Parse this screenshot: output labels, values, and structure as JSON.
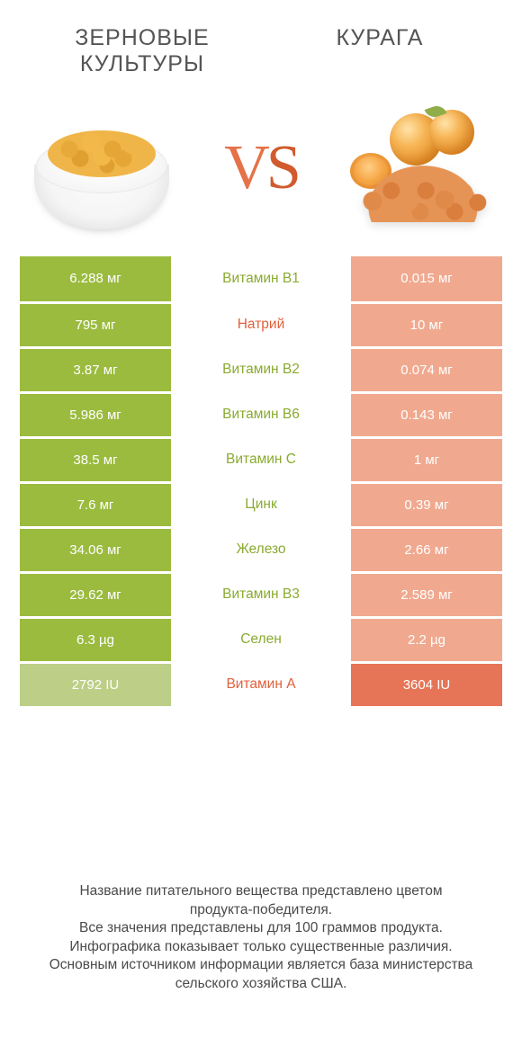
{
  "colors": {
    "left_win": "#9bbb3f",
    "right_win": "#e57556",
    "left_lose": "#bdce86",
    "right_lose": "#f0a98f",
    "label_left_winner": "#8aaa30",
    "label_right_winner": "#e0603c"
  },
  "products": {
    "left_title": "ЗЕРНОВЫЕ КУЛЬТУРЫ",
    "right_title": "КУРАГА",
    "vs": "VS"
  },
  "rows": [
    {
      "label": "Витамин B1",
      "left": "6.288 мг",
      "right": "0.015 мг",
      "winner": "left"
    },
    {
      "label": "Натрий",
      "left": "795 мг",
      "right": "10 мг",
      "winner": "left",
      "label_winner": "right"
    },
    {
      "label": "Витамин B2",
      "left": "3.87 мг",
      "right": "0.074 мг",
      "winner": "left"
    },
    {
      "label": "Витамин B6",
      "left": "5.986 мг",
      "right": "0.143 мг",
      "winner": "left"
    },
    {
      "label": "Витамин C",
      "left": "38.5 мг",
      "right": "1 мг",
      "winner": "left"
    },
    {
      "label": "Цинк",
      "left": "7.6 мг",
      "right": "0.39 мг",
      "winner": "left"
    },
    {
      "label": "Железо",
      "left": "34.06 мг",
      "right": "2.66 мг",
      "winner": "left"
    },
    {
      "label": "Витамин B3",
      "left": "29.62 мг",
      "right": "2.589 мг",
      "winner": "left"
    },
    {
      "label": "Селен",
      "left": "6.3 µg",
      "right": "2.2 µg",
      "winner": "left"
    },
    {
      "label": "Витамин A",
      "left": "2792 IU",
      "right": "3604 IU",
      "winner": "right"
    }
  ],
  "footer": {
    "l1": "Название питательного вещества представлено цветом",
    "l2": "продукта-победителя.",
    "l3": "Все значения представлены для 100 граммов продукта.",
    "l4": "Инфографика показывает только существенные различия.",
    "l5": "Основным источником информации является база министерства",
    "l6": "сельского хозяйства США."
  }
}
